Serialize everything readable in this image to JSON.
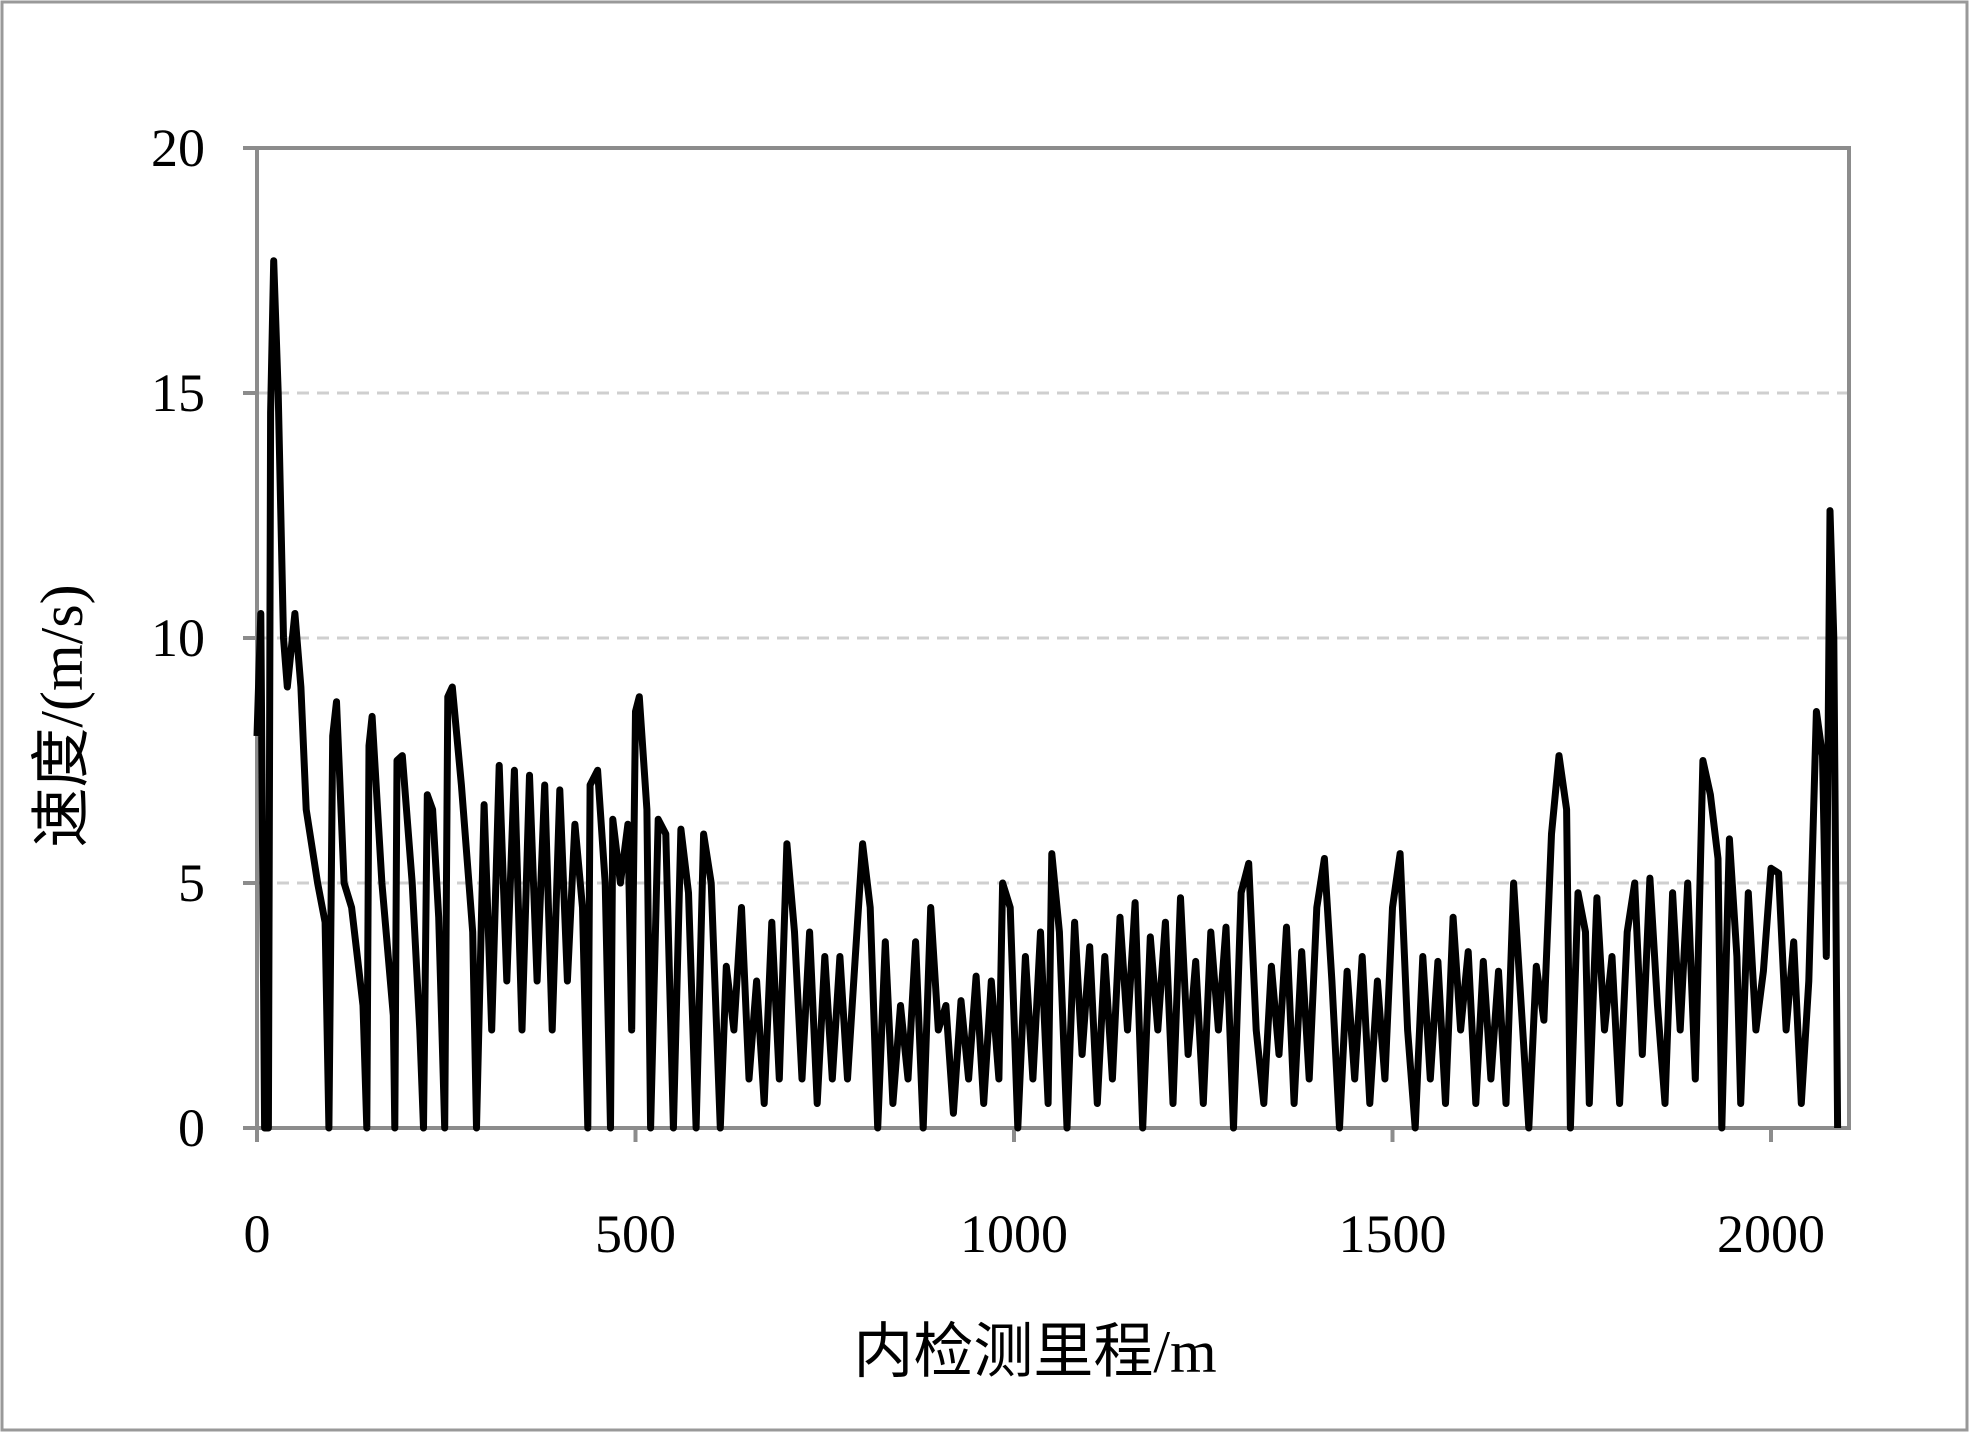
{
  "chart_data": {
    "type": "line",
    "title": "",
    "xlabel": "内检测里程/m",
    "ylabel": "速度/(m/s)",
    "xlim": [
      0,
      2100
    ],
    "ylim": [
      0,
      20
    ],
    "xticks": [
      "0",
      "500",
      "1000",
      "1500",
      "2000"
    ],
    "yticks": [
      "0",
      "5",
      "10",
      "15",
      "20"
    ],
    "grid": "horizontal dashed",
    "line_color": "#000000",
    "series": [
      {
        "x": [
          0,
          5,
          10,
          15,
          18,
          22,
          28,
          35,
          40,
          50,
          58,
          65,
          80,
          90,
          95,
          100,
          105,
          115,
          125,
          140,
          145,
          148,
          152,
          165,
          180,
          182,
          185,
          192,
          205,
          215,
          220,
          225,
          232,
          240,
          248,
          252,
          258,
          270,
          285,
          290,
          300,
          310,
          320,
          330,
          340,
          350,
          360,
          370,
          380,
          390,
          400,
          410,
          420,
          430,
          437,
          440,
          450,
          460,
          467,
          470,
          480,
          490,
          495,
          500,
          505,
          515,
          520,
          530,
          540,
          550,
          560,
          570,
          580,
          590,
          600,
          612,
          620,
          630,
          640,
          650,
          660,
          670,
          680,
          690,
          700,
          710,
          720,
          730,
          740,
          750,
          760,
          770,
          780,
          790,
          800,
          810,
          820,
          830,
          840,
          850,
          860,
          870,
          880,
          890,
          900,
          910,
          920,
          930,
          940,
          950,
          960,
          970,
          980,
          985,
          995,
          1005,
          1015,
          1025,
          1035,
          1045,
          1050,
          1060,
          1070,
          1080,
          1090,
          1100,
          1110,
          1120,
          1130,
          1140,
          1150,
          1160,
          1170,
          1180,
          1190,
          1200,
          1210,
          1220,
          1230,
          1240,
          1250,
          1260,
          1270,
          1280,
          1290,
          1300,
          1310,
          1320,
          1330,
          1340,
          1350,
          1360,
          1370,
          1380,
          1390,
          1400,
          1410,
          1420,
          1430,
          1440,
          1450,
          1460,
          1470,
          1480,
          1490,
          1500,
          1510,
          1520,
          1530,
          1540,
          1550,
          1560,
          1570,
          1580,
          1590,
          1600,
          1610,
          1620,
          1630,
          1640,
          1650,
          1660,
          1670,
          1680,
          1690,
          1700,
          1710,
          1720,
          1730,
          1735,
          1745,
          1755,
          1760,
          1770,
          1780,
          1790,
          1800,
          1810,
          1820,
          1830,
          1840,
          1850,
          1860,
          1870,
          1880,
          1890,
          1900,
          1910,
          1920,
          1930,
          1935,
          1945,
          1955,
          1960,
          1970,
          1980,
          1990,
          2000,
          2010,
          2020,
          2030,
          2040,
          2050,
          2060,
          2068,
          2073,
          2078,
          2083,
          2088
        ],
        "y": [
          8,
          10.5,
          0,
          0,
          14.6,
          17.7,
          15,
          10,
          9,
          10.5,
          9,
          6.5,
          5,
          4.2,
          0,
          8,
          8.7,
          5,
          4.5,
          2.5,
          0,
          7.8,
          8.4,
          5,
          2.3,
          0,
          7.5,
          7.6,
          5,
          2,
          0,
          6.8,
          6.5,
          4.3,
          0,
          8.8,
          9.0,
          7,
          4,
          0,
          6.6,
          2,
          7.4,
          3,
          7.3,
          2,
          7.2,
          3,
          7.0,
          2,
          6.9,
          3,
          6.2,
          4.5,
          0,
          7.0,
          7.3,
          5,
          0,
          6.3,
          5,
          6.2,
          2,
          8.5,
          8.8,
          6.5,
          0,
          6.3,
          6,
          0,
          6.1,
          4.8,
          0,
          6.0,
          5,
          0,
          3.3,
          2,
          4.5,
          1,
          3,
          0.5,
          4.2,
          1,
          5.8,
          4,
          1,
          4,
          0.5,
          3.5,
          1,
          3.5,
          1,
          3.4,
          5.8,
          4.5,
          0,
          3.8,
          0.5,
          2.5,
          1,
          3.8,
          0,
          4.5,
          2,
          2.5,
          0.3,
          2.6,
          1,
          3.1,
          0.5,
          3,
          1,
          5.0,
          4.5,
          0,
          3.5,
          1,
          4,
          0.5,
          5.6,
          4,
          0,
          4.2,
          1.5,
          3.7,
          0.5,
          3.5,
          1,
          4.3,
          2,
          4.6,
          0,
          3.9,
          2,
          4.2,
          0.5,
          4.7,
          1.5,
          3.4,
          0.5,
          4.0,
          2,
          4.1,
          0,
          4.8,
          5.4,
          2,
          0.5,
          3.3,
          1.5,
          4.1,
          0.5,
          3.6,
          1,
          4.5,
          5.5,
          3,
          0,
          3.2,
          1,
          3.5,
          0.5,
          3.0,
          1,
          4.5,
          5.6,
          2,
          0,
          3.5,
          1,
          3.4,
          0.5,
          4.3,
          2,
          3.6,
          0.5,
          3.4,
          1,
          3.2,
          0.5,
          5.0,
          2.5,
          0,
          3.3,
          2.2,
          6.0,
          7.6,
          6.5,
          0,
          4.8,
          4,
          0.5,
          4.7,
          2,
          3.5,
          0.5,
          4,
          5,
          1.5,
          5.1,
          2.5,
          0.5,
          4.8,
          2,
          5.0,
          1,
          7.5,
          6.8,
          5.5,
          0,
          5.9,
          3.5,
          0.5,
          4.8,
          2,
          3.2,
          5.3,
          5.2,
          2,
          3.8,
          0.5,
          3.0,
          8.5,
          7.6,
          3.5,
          12.6,
          10,
          0
        ]
      }
    ]
  }
}
